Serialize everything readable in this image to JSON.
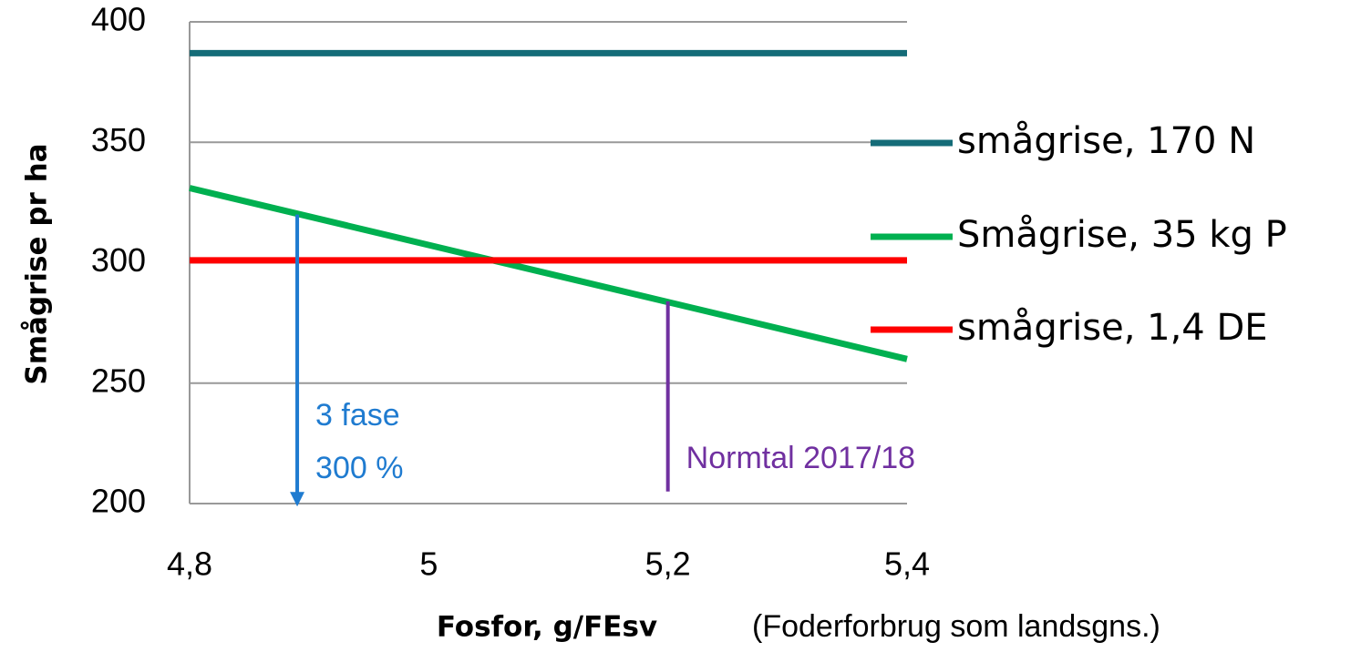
{
  "chart_data": {
    "type": "line",
    "x": [
      4.8,
      5.4
    ],
    "series": [
      {
        "name": "smågrise, 170 N",
        "color": "#146c78",
        "values": [
          387,
          387
        ]
      },
      {
        "name": "Smågrise, 35 kg P",
        "color": "#00b050",
        "values": [
          331,
          260
        ]
      },
      {
        "name": "smågrise, 1,4 DE",
        "color": "#ff0000",
        "values": [
          301,
          301
        ]
      }
    ],
    "xlim": [
      4.8,
      5.4
    ],
    "xticks": [
      {
        "value": 4.8,
        "label": "4,8"
      },
      5,
      {
        "value": 5.2,
        "label": "5,2"
      },
      {
        "value": 5.4,
        "label": "5,4"
      }
    ],
    "ylim": [
      200,
      400
    ],
    "yticks": [
      200,
      250,
      300,
      350,
      400
    ],
    "grid": true,
    "legend": "right",
    "ylabel": "Smågrise pr ha",
    "xlabel": "Fosfor, g/FEsv",
    "xlabel_note": "(Foderforbrug som landsgns.)",
    "annotations": [
      {
        "text": [
          "3 fase",
          "300 %"
        ],
        "x": 4.89,
        "y_start": 320,
        "y_end": 200,
        "color": "#1f7bd0",
        "arrow": true
      },
      {
        "text": [
          "Normtal 2017/18"
        ],
        "x": 5.2,
        "y_start": 284,
        "y_end": 205,
        "color": "#7030a0",
        "arrow": false
      }
    ]
  }
}
